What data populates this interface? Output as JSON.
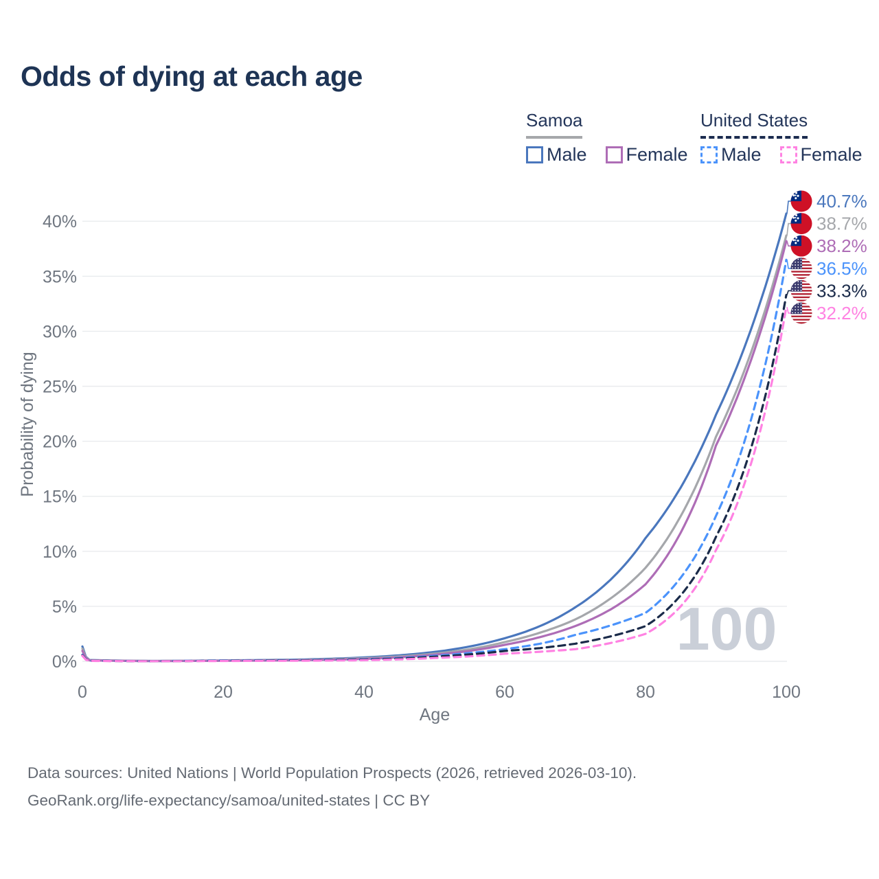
{
  "title": "Odds of dying at each age",
  "legend": {
    "groups": [
      {
        "label": "Samoa",
        "line_style": "solid",
        "underline_color": "#a6a8ab",
        "items": [
          {
            "label": "Male",
            "color": "#4a77bd"
          },
          {
            "label": "Female",
            "color": "#ae6db6"
          }
        ]
      },
      {
        "label": "United States",
        "line_style": "dashed",
        "underline_color": "#1c2c4f",
        "items": [
          {
            "label": "Male",
            "color": "#4b93fb"
          },
          {
            "label": "Female",
            "color": "#ff82e2"
          }
        ]
      }
    ]
  },
  "watermark": "100",
  "footer": {
    "line1": "Data sources: United Nations | World Population Prospects (2026, retrieved 2026-03-10).",
    "line2": "GeoRank.org/life-expectancy/samoa/united-states | CC BY"
  },
  "colors": {
    "grid": "#e9ebee",
    "tick_text": "#6f7680",
    "watermark": "#cacfd8"
  },
  "chart_data": {
    "type": "line",
    "title": "Odds of dying at each age",
    "xlabel": "Age",
    "ylabel": "Probability of dying",
    "xlim": [
      0,
      100
    ],
    "ylim": [
      0,
      42
    ],
    "grid": true,
    "legend_position": "top-right",
    "x_ticks": [
      {
        "v": 0,
        "label": "0"
      },
      {
        "v": 20,
        "label": "20"
      },
      {
        "v": 40,
        "label": "40"
      },
      {
        "v": 60,
        "label": "60"
      },
      {
        "v": 80,
        "label": "80"
      },
      {
        "v": 100,
        "label": "100"
      }
    ],
    "y_ticks": [
      {
        "v": 0,
        "label": "0%"
      },
      {
        "v": 5,
        "label": "5%"
      },
      {
        "v": 10,
        "label": "10%"
      },
      {
        "v": 15,
        "label": "15%"
      },
      {
        "v": 20,
        "label": "20%"
      },
      {
        "v": 25,
        "label": "25%"
      },
      {
        "v": 30,
        "label": "30%"
      },
      {
        "v": 35,
        "label": "35%"
      },
      {
        "v": 40,
        "label": "40%"
      }
    ],
    "x": [
      0,
      1,
      10,
      20,
      30,
      40,
      50,
      55,
      60,
      65,
      70,
      75,
      80,
      85,
      90,
      95,
      100
    ],
    "series": [
      {
        "name": "Samoa Male",
        "country": "Samoa",
        "sex": "Male",
        "flag": "samoa",
        "color": "#4a77bd",
        "dash": false,
        "end_label": "40.7%",
        "values": [
          1.35,
          0.12,
          0.03,
          0.08,
          0.15,
          0.35,
          0.85,
          1.35,
          2.1,
          3.2,
          4.9,
          7.4,
          11.2,
          15.8,
          22.4,
          30.2,
          40.7
        ]
      },
      {
        "name": "Samoa Both sexes",
        "country": "Samoa",
        "sex": "Both",
        "flag": "samoa",
        "color": "#a5a7ab",
        "dash": false,
        "end_label": "38.7%",
        "values": [
          1.15,
          0.1,
          0.03,
          0.06,
          0.12,
          0.28,
          0.7,
          1.1,
          1.75,
          2.6,
          3.8,
          5.7,
          8.5,
          13.2,
          20.4,
          28.1,
          38.7
        ]
      },
      {
        "name": "Samoa Female",
        "country": "Samoa",
        "sex": "Female",
        "flag": "samoa",
        "color": "#ae6db6",
        "dash": false,
        "end_label": "38.2%",
        "values": [
          0.95,
          0.09,
          0.02,
          0.05,
          0.09,
          0.22,
          0.6,
          0.95,
          1.5,
          2.2,
          3.2,
          4.7,
          7.0,
          11.7,
          19.6,
          27.4,
          38.2
        ]
      },
      {
        "name": "United States Male",
        "country": "United States",
        "sex": "Male",
        "flag": "us",
        "color": "#4b93fb",
        "dash": true,
        "end_label": "36.5%",
        "values": [
          0.6,
          0.05,
          0.02,
          0.07,
          0.1,
          0.18,
          0.5,
          0.75,
          1.1,
          1.6,
          2.4,
          3.25,
          4.4,
          7.6,
          13.2,
          22.0,
          36.5
        ]
      },
      {
        "name": "United States Both sexes",
        "country": "United States",
        "sex": "Both",
        "flag": "us",
        "color": "#1b2b4a",
        "dash": true,
        "end_label": "33.3%",
        "values": [
          0.55,
          0.05,
          0.015,
          0.05,
          0.08,
          0.15,
          0.42,
          0.63,
          0.94,
          1.2,
          1.6,
          2.26,
          3.2,
          6.0,
          11.3,
          19.4,
          33.3
        ]
      },
      {
        "name": "United States Female",
        "country": "United States",
        "sex": "Female",
        "flag": "us",
        "color": "#ff82e2",
        "dash": true,
        "end_label": "32.2%",
        "values": [
          0.5,
          0.04,
          0.01,
          0.03,
          0.05,
          0.1,
          0.3,
          0.45,
          0.69,
          0.87,
          1.1,
          1.66,
          2.5,
          5.0,
          10.1,
          18.0,
          32.2
        ]
      }
    ]
  }
}
